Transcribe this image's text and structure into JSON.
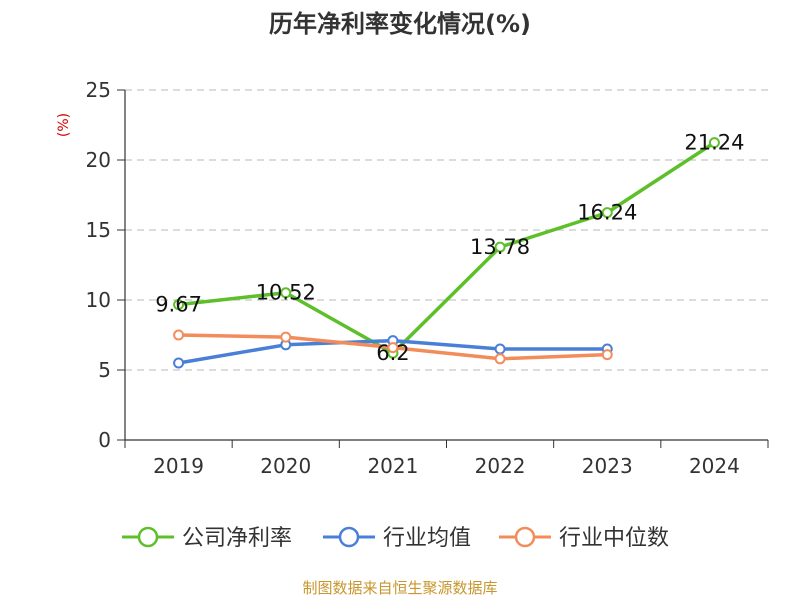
{
  "chart_data": {
    "type": "line",
    "title": "历年净利率变化情况(%)",
    "ylabel": "(%)",
    "xlabel": "",
    "categories": [
      "2019",
      "2020",
      "2021",
      "2022",
      "2023",
      "2024"
    ],
    "ylim": [
      0,
      25
    ],
    "yticks": [
      0,
      5,
      10,
      15,
      20,
      25
    ],
    "grid": true,
    "legend_position": "bottom",
    "series": [
      {
        "name": "公司净利率",
        "values": [
          9.67,
          10.52,
          6.2,
          13.78,
          16.24,
          21.24
        ],
        "color": "#5dbf2a",
        "labels": [
          "9.67",
          "10.52",
          "6.2",
          "13.78",
          "16.24",
          "21.24"
        ]
      },
      {
        "name": "行业均值",
        "values": [
          5.5,
          6.8,
          7.1,
          6.5,
          6.5,
          null
        ],
        "color": "#4a7fd8"
      },
      {
        "name": "行业中位数",
        "values": [
          7.5,
          7.35,
          6.6,
          5.8,
          6.1,
          null
        ],
        "color": "#f28c5b"
      }
    ],
    "source": "制图数据来自恒生聚源数据库",
    "colors": {
      "axis": "#333333",
      "grid": "#c8c8c8",
      "ylabel": "#d40000",
      "source": "#c8962d"
    }
  }
}
